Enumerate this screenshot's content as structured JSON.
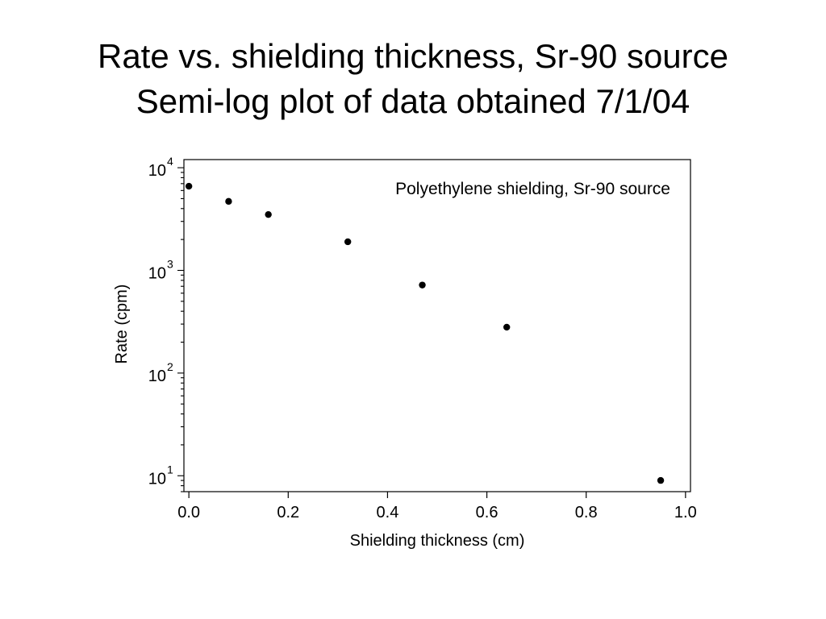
{
  "slide": {
    "title_line1": "Rate vs. shielding thickness, Sr-90 source",
    "title_line2": "Semi-log plot of data obtained 7/1/04"
  },
  "chart_data": {
    "type": "scatter",
    "title": "",
    "annotation": "Polyethylene shielding, Sr-90 source",
    "xlabel": "Shielding thickness (cm)",
    "ylabel": "Rate (cpm)",
    "xlim": [
      -0.01,
      1.01
    ],
    "ylim": [
      7,
      12000
    ],
    "yscale": "log",
    "x_ticks": [
      "0.0",
      "0.2",
      "0.4",
      "0.6",
      "0.8",
      "1.0"
    ],
    "y_ticks": [
      {
        "base": "10",
        "exp": "1"
      },
      {
        "base": "10",
        "exp": "2"
      },
      {
        "base": "10",
        "exp": "3"
      },
      {
        "base": "10",
        "exp": "4"
      }
    ],
    "grid": false,
    "series": [
      {
        "x": [
          0.0,
          0.08,
          0.16,
          0.32,
          0.47,
          0.64,
          0.95
        ],
        "y": [
          6600,
          4700,
          3500,
          1900,
          720,
          280,
          9
        ],
        "color": "#000000"
      }
    ]
  }
}
